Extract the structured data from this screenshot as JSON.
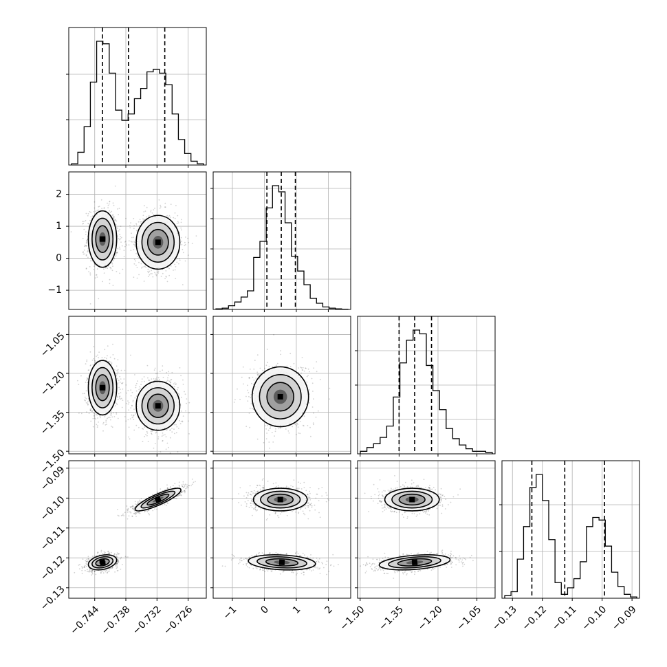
{
  "chart_data": {
    "type": "corner",
    "dims": [
      {
        "ticks": [
          -0.744,
          -0.738,
          -0.732,
          -0.726
        ],
        "tick_labels": [
          "−0.744",
          "−0.738",
          "−0.732",
          "−0.726"
        ],
        "range": [
          -0.749,
          -0.7225
        ],
        "modes": [
          {
            "mu": -0.7425,
            "sd": 0.0013,
            "w": 0.5
          },
          {
            "mu": -0.7318,
            "sd": 0.0021,
            "w": 0.5
          }
        ],
        "hist": [
          0.01,
          0.1,
          0.3,
          0.65,
          0.97,
          0.95,
          0.72,
          0.43,
          0.35,
          0.4,
          0.52,
          0.6,
          0.73,
          0.75,
          0.72,
          0.63,
          0.4,
          0.2,
          0.09,
          0.03,
          0.01
        ],
        "quantiles": [
          -0.7425,
          -0.7375,
          -0.7305
        ]
      },
      {
        "ticks": [
          -1,
          0,
          1,
          2
        ],
        "tick_labels": [
          "−1",
          "0",
          "1",
          "2"
        ],
        "range": [
          -1.6,
          2.7
        ],
        "modes": [
          {
            "mu": 0.52,
            "sd": 0.4,
            "w": 1.0
          }
        ],
        "hist": [
          0.005,
          0.01,
          0.03,
          0.06,
          0.1,
          0.15,
          0.42,
          0.55,
          0.82,
          1.0,
          0.95,
          0.7,
          0.43,
          0.31,
          0.2,
          0.09,
          0.05,
          0.02,
          0.01,
          0.005,
          0.002
        ],
        "quantiles": [
          0.08,
          0.53,
          0.97
        ]
      },
      {
        "ticks": [
          -1.5,
          -1.35,
          -1.2,
          -1.05
        ],
        "tick_labels": [
          "−1.50",
          "−1.35",
          "−1.20",
          "−1.05"
        ],
        "range": [
          -1.51,
          -0.98
        ],
        "modes": [
          {
            "mu": -1.29,
            "sd": 0.055,
            "w": 1.0
          }
        ],
        "hist": [
          0.02,
          0.05,
          0.08,
          0.13,
          0.22,
          0.45,
          0.72,
          0.9,
          0.98,
          0.95,
          0.7,
          0.5,
          0.35,
          0.2,
          0.12,
          0.07,
          0.04,
          0.02,
          0.02,
          0.01
        ],
        "quantiles": [
          -1.35,
          -1.29,
          -1.225
        ]
      },
      {
        "ticks": [
          -0.13,
          -0.12,
          -0.11,
          -0.1,
          -0.09
        ],
        "tick_labels": [
          "−0.13",
          "−0.12",
          "−0.11",
          "−0.10",
          "−0.09"
        ],
        "range": [
          -0.1335,
          -0.0875
        ],
        "modes": [
          {
            "mu": -0.1215,
            "sd": 0.0012,
            "w": 0.5
          },
          {
            "mu": -0.1005,
            "sd": 0.0018,
            "w": 0.5
          }
        ],
        "hist": [
          0.02,
          0.05,
          0.3,
          0.55,
          0.85,
          0.95,
          0.75,
          0.45,
          0.12,
          0.03,
          0.08,
          0.15,
          0.28,
          0.55,
          0.62,
          0.6,
          0.4,
          0.2,
          0.09,
          0.03,
          0.01
        ],
        "quantiles": [
          -0.1235,
          -0.1125,
          -0.0992
        ]
      }
    ],
    "pairs": [
      {
        "x": 0,
        "y": 1,
        "blobs": [
          {
            "cx": -0.7425,
            "cy": 0.6,
            "sx": 0.0013,
            "sy": 0.42,
            "r": 0.0
          },
          {
            "cx": -0.7318,
            "cy": 0.5,
            "sx": 0.002,
            "sy": 0.4,
            "r": 0.0
          }
        ]
      },
      {
        "x": 0,
        "y": 2,
        "blobs": [
          {
            "cx": -0.7425,
            "cy": -1.255,
            "sx": 0.0013,
            "sy": 0.05,
            "r": 0.0
          },
          {
            "cx": -0.7318,
            "cy": -1.325,
            "sx": 0.002,
            "sy": 0.045,
            "r": 0.0
          }
        ]
      },
      {
        "x": 0,
        "y": 3,
        "blobs": [
          {
            "cx": -0.7425,
            "cy": -0.1215,
            "sx": 0.0013,
            "sy": 0.0012,
            "r": 0.3
          },
          {
            "cx": -0.7318,
            "cy": -0.1005,
            "sx": 0.0021,
            "sy": 0.0018,
            "r": 0.85
          }
        ]
      },
      {
        "x": 1,
        "y": 2,
        "blobs": [
          {
            "cx": 0.5,
            "cy": -1.29,
            "sx": 0.42,
            "sy": 0.055,
            "r": 0.0
          }
        ]
      },
      {
        "x": 1,
        "y": 3,
        "blobs": [
          {
            "cx": 0.5,
            "cy": -0.1005,
            "sx": 0.4,
            "sy": 0.0018,
            "r": 0.0
          },
          {
            "cx": 0.55,
            "cy": -0.1215,
            "sx": 0.5,
            "sy": 0.0012,
            "r": -0.2
          }
        ]
      },
      {
        "x": 2,
        "y": 3,
        "blobs": [
          {
            "cx": -1.3,
            "cy": -0.1005,
            "sx": 0.05,
            "sy": 0.0018,
            "r": 0.0
          },
          {
            "cx": -1.29,
            "cy": -0.1215,
            "sx": 0.065,
            "sy": 0.0012,
            "r": 0.35
          }
        ]
      }
    ],
    "hist_yticks": [
      [
        0.33,
        0.66
      ],
      [
        0.22,
        0.44,
        0.66,
        0.88
      ],
      [
        0.25,
        0.5,
        0.75
      ],
      [
        0.34,
        0.68
      ]
    ],
    "grid": true
  }
}
